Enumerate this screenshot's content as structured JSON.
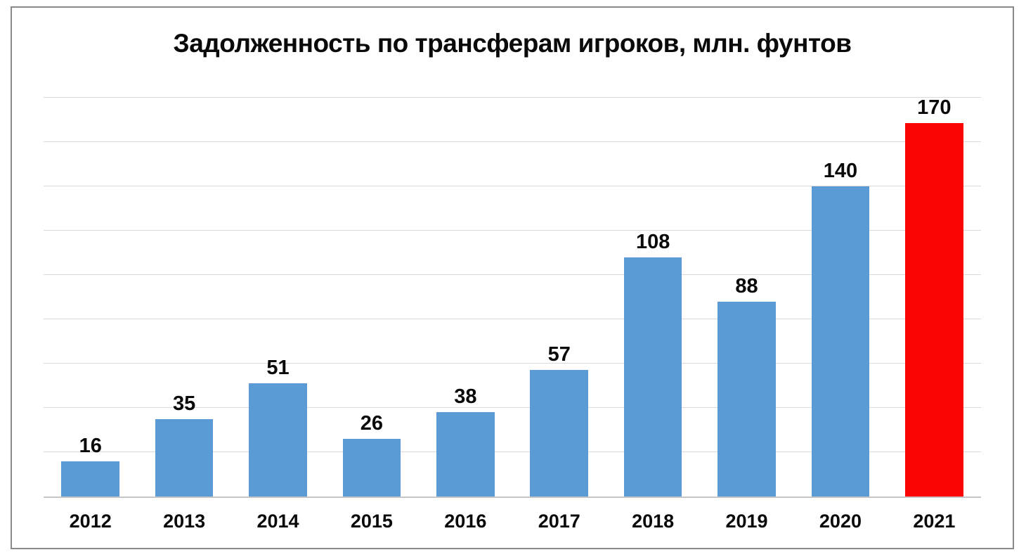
{
  "title": "Задолженность по трансферам игроков, млн. фунтов",
  "chart_data": {
    "type": "bar",
    "title": "Задолженность по трансферам игроков, млн. фунтов",
    "categories": [
      "2012",
      "2013",
      "2014",
      "2015",
      "2016",
      "2017",
      "2018",
      "2019",
      "2020",
      "2021"
    ],
    "values": [
      16,
      35,
      51,
      26,
      38,
      57,
      108,
      88,
      140,
      170
    ],
    "xlabel": "",
    "ylabel": "",
    "ylim": [
      0,
      180
    ],
    "gridline_step": 20,
    "grid": true,
    "legend": false,
    "bar_color": "#5b9bd5",
    "highlight_category": "2021",
    "highlight_color": "#fb0404",
    "gridline_color": "#d9d9d9",
    "axis_line_color": "#c6c6c6",
    "text_color": "#0a0a0a",
    "data_labels_shown": true
  }
}
